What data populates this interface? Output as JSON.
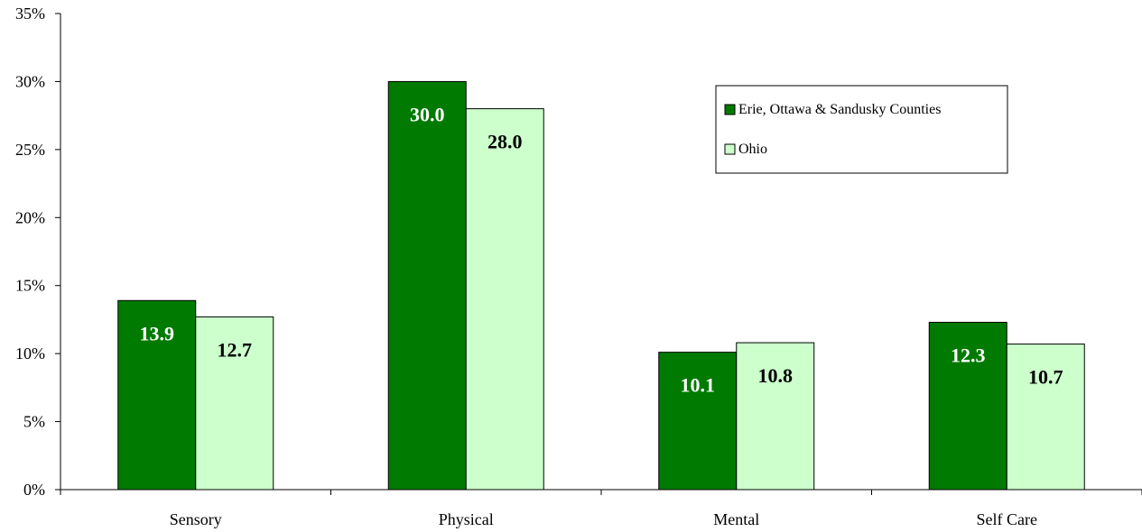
{
  "chart_data": {
    "type": "bar",
    "categories": [
      "Sensory",
      "Physical",
      "Mental",
      "Self Care"
    ],
    "series": [
      {
        "name": "Erie, Ottawa & Sandusky Counties",
        "values": [
          13.9,
          30.0,
          10.1,
          12.3
        ],
        "labels": [
          "13.9",
          "30.0",
          "10.1",
          "12.3"
        ],
        "color": "#007a00",
        "label_color": "#ffffff"
      },
      {
        "name": "Ohio",
        "values": [
          12.7,
          28.0,
          10.8,
          10.7
        ],
        "labels": [
          "12.7",
          "28.0",
          "10.8",
          "10.7"
        ],
        "color": "#ccffcc",
        "label_color": "#000000"
      }
    ],
    "ylim": [
      0,
      35
    ],
    "yticks": [
      "0%",
      "5%",
      "10%",
      "15%",
      "20%",
      "25%",
      "30%",
      "35%"
    ],
    "ytick_values": [
      0,
      5,
      10,
      15,
      20,
      25,
      30,
      35
    ],
    "grid": false,
    "legend_position": "top-right",
    "title": "",
    "xlabel": "",
    "ylabel": ""
  }
}
